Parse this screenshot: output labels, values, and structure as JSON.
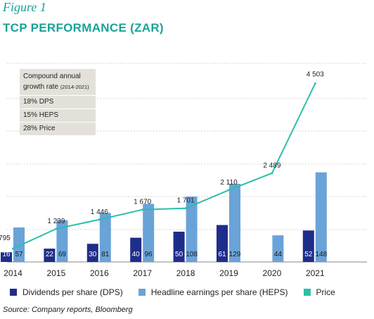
{
  "figure_label": "Figure 1",
  "title": "TCP PERFORMANCE (ZAR)",
  "cagr": {
    "heading_line1": "Compound annual",
    "heading_line2": "growth rate",
    "heading_period": "(2014-2021)",
    "rows": [
      "18%  DPS",
      "15%  HEPS",
      "28% Price"
    ]
  },
  "legend": {
    "dps": "Dividends per share (DPS)",
    "heps": "Headline earnings per share (HEPS)",
    "price": "Price"
  },
  "source": "Source: Company reports, Bloomberg",
  "colors": {
    "dps": "#1f2d8a",
    "heps": "#6aa3d8",
    "price": "#2bbfa9",
    "title": "#17a398",
    "grid": "#d5d5d5"
  },
  "chart_data": {
    "type": "bar",
    "categories": [
      "2014",
      "2015",
      "2016",
      "2017",
      "2018",
      "2019",
      "2020",
      "2021"
    ],
    "series": [
      {
        "name": "Dividends per share (DPS)",
        "type": "bar",
        "values": [
          16,
          22,
          30,
          40,
          50,
          61,
          null,
          52
        ],
        "labels": [
          "16",
          "22",
          "30",
          "40",
          "50",
          "61",
          "",
          "52"
        ]
      },
      {
        "name": "Headline earnings per share (HEPS)",
        "type": "bar",
        "values": [
          57,
          69,
          81,
          96,
          108,
          129,
          44,
          148
        ],
        "labels": [
          "57",
          "69",
          "81",
          "96",
          "108",
          "129",
          "44",
          "148"
        ]
      },
      {
        "name": "Price",
        "type": "line",
        "values": [
          795,
          1239,
          1446,
          1670,
          1701,
          2110,
          2489,
          4503
        ],
        "labels": [
          "795",
          "1 239",
          "1 446",
          "1 670",
          "1 701",
          "2 110",
          "2 489",
          "4 503"
        ]
      }
    ],
    "grid": true,
    "legend_position": "bottom"
  }
}
